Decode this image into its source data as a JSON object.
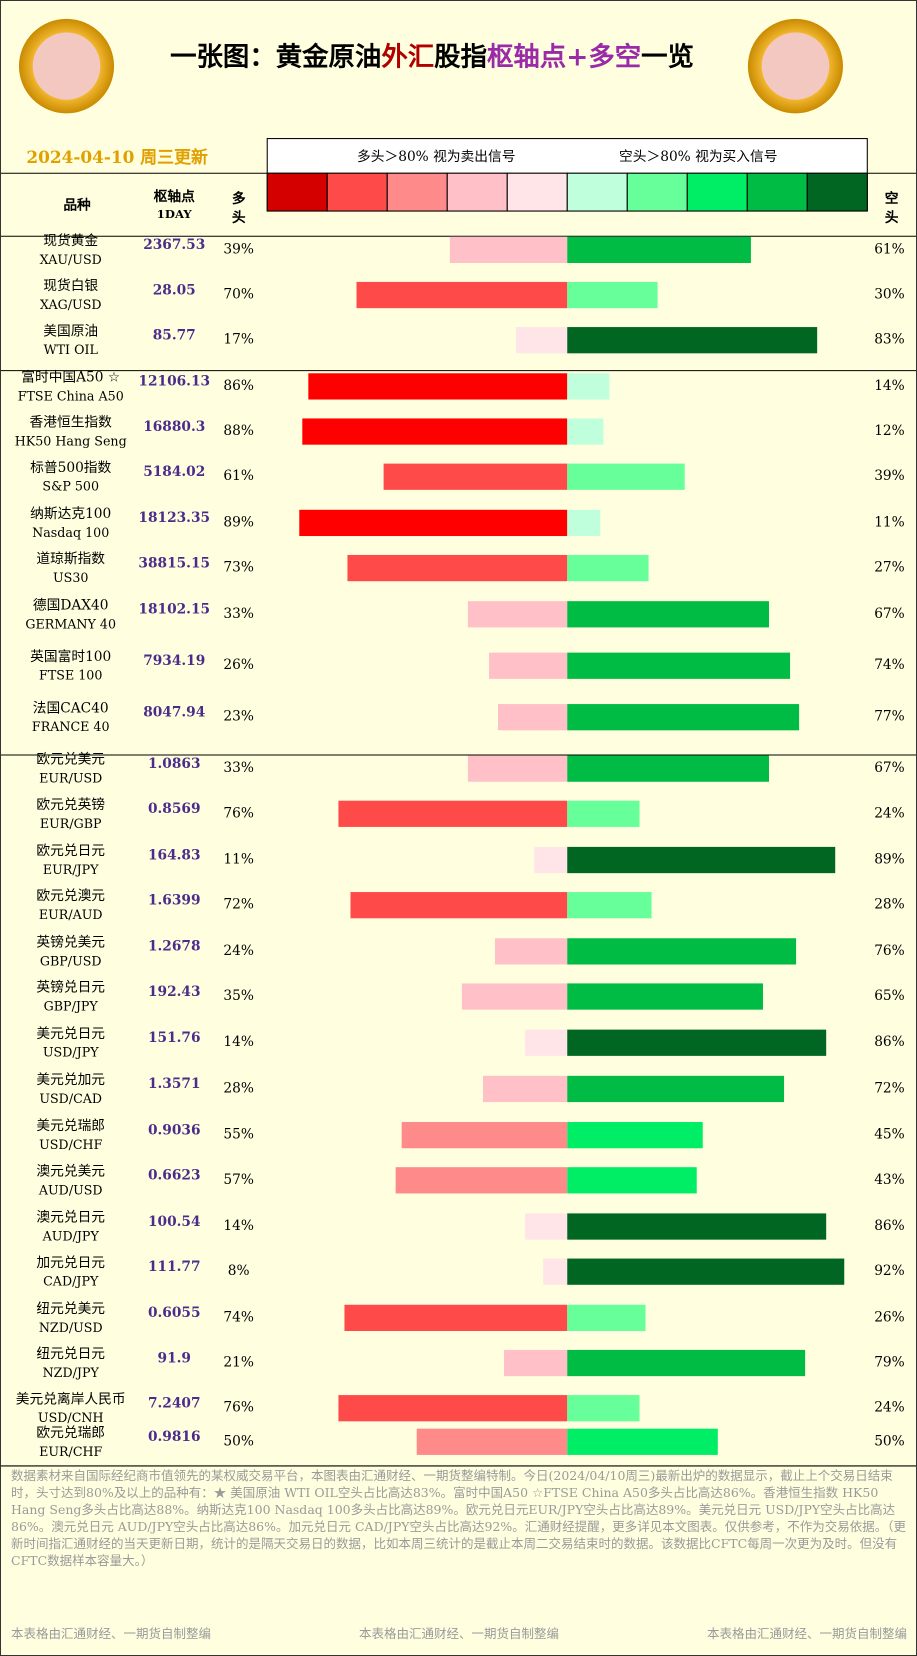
{
  "header": {
    "title_parts": [
      "一张图：黄金原油",
      "外汇",
      "股指",
      "枢轴点+多空",
      "一览"
    ],
    "date": "2024-04-10 周三更新",
    "legend_long": "多头＞80% 视为卖出信号",
    "legend_short": "空头＞80% 视为买入信号",
    "legend_colors": [
      "#d40000",
      "#ff4a4a",
      "#ff8a8a",
      "#ffc0c8",
      "#ffe4e8",
      "#c0ffdc",
      "#66ff99",
      "#00ee66",
      "#00bb44",
      "#006622"
    ],
    "col_name": "品种",
    "col_pivot": "枢轴点",
    "col_pivot_sub": "1DAY",
    "col_long": [
      "多",
      "头"
    ],
    "col_short": [
      "空",
      "头"
    ]
  },
  "groups": [
    {
      "rows": [
        {
          "name": "现货黄金",
          "code": "XAU/USD",
          "pivot": 2367.53,
          "values": [
            39,
            61
          ],
          "value_labels": [
            "39%",
            "61%"
          ],
          "colors": [
            "#ffc0c8",
            "#00bb44"
          ]
        },
        {
          "name": "现货白银",
          "code": "XAG/USD",
          "pivot": 28.05,
          "values": [
            70,
            30
          ],
          "value_labels": [
            "70%",
            "30%"
          ],
          "colors": [
            "#ff4a4a",
            "#66ff99"
          ]
        },
        {
          "name": "美国原油",
          "code": "WTI OIL",
          "pivot": 85.77,
          "values": [
            17,
            83
          ],
          "value_labels": [
            "17%",
            "83%"
          ],
          "colors": [
            "#ffe4e8",
            "#006622"
          ]
        }
      ]
    },
    {
      "rows": [
        {
          "name": "富时中国A50 ☆",
          "code": "FTSE China A50",
          "pivot": 12106.13,
          "values": [
            86,
            14
          ],
          "value_labels": [
            "86%",
            "14%"
          ],
          "colors": [
            "#ff0000",
            "#c0ffdc"
          ]
        },
        {
          "name": "香港恒生指数",
          "code": "HK50 Hang Seng",
          "pivot": 16880.3,
          "values": [
            88,
            12
          ],
          "value_labels": [
            "88%",
            "12%"
          ],
          "colors": [
            "#ff0000",
            "#c0ffdc"
          ]
        },
        {
          "name": "标普500指数",
          "code": "S&P 500",
          "pivot": 5184.02,
          "values": [
            61,
            39
          ],
          "value_labels": [
            "61%",
            "39%"
          ],
          "colors": [
            "#ff4a4a",
            "#66ff99"
          ]
        },
        {
          "name": "纳斯达克100",
          "code": "Nasdaq 100",
          "pivot": 18123.35,
          "values": [
            89,
            11
          ],
          "value_labels": [
            "89%",
            "11%"
          ],
          "colors": [
            "#ff0000",
            "#c0ffdc"
          ]
        },
        {
          "name": "道琼斯指数",
          "code": "US30",
          "pivot": 38815.15,
          "values": [
            73,
            27
          ],
          "value_labels": [
            "73%",
            "27%"
          ],
          "colors": [
            "#ff4a4a",
            "#66ff99"
          ]
        },
        {
          "name": "德国DAX40",
          "code": "GERMANY 40",
          "pivot": 18102.15,
          "values": [
            33,
            67
          ],
          "value_labels": [
            "33%",
            "67%"
          ],
          "colors": [
            "#ffc0c8",
            "#00bb44"
          ]
        },
        {
          "name": "英国富时100",
          "code": "FTSE 100",
          "pivot": 7934.19,
          "values": [
            26,
            74
          ],
          "value_labels": [
            "26%",
            "74%"
          ],
          "colors": [
            "#ffc0c8",
            "#00bb44"
          ]
        },
        {
          "name": "法国CAC40",
          "code": "FRANCE 40",
          "pivot": 8047.94,
          "values": [
            23,
            77
          ],
          "value_labels": [
            "23%",
            "77%"
          ],
          "colors": [
            "#ffc0c8",
            "#00bb44"
          ]
        }
      ]
    },
    {
      "rows": [
        {
          "name": "欧元兑美元",
          "code": "EUR/USD",
          "pivot": 1.0863,
          "values": [
            33,
            67
          ],
          "value_labels": [
            "33%",
            "67%"
          ],
          "colors": [
            "#ffc0c8",
            "#00bb44"
          ]
        },
        {
          "name": "欧元兑英镑",
          "code": "EUR/GBP",
          "pivot": 0.8569,
          "values": [
            76,
            24
          ],
          "value_labels": [
            "76%",
            "24%"
          ],
          "colors": [
            "#ff4a4a",
            "#66ff99"
          ]
        },
        {
          "name": "欧元兑日元",
          "code": "EUR/JPY",
          "pivot": 164.83,
          "values": [
            11,
            89
          ],
          "value_labels": [
            "11%",
            "89%"
          ],
          "colors": [
            "#ffe4e8",
            "#006622"
          ]
        },
        {
          "name": "欧元兑澳元",
          "code": "EUR/AUD",
          "pivot": 1.6399,
          "values": [
            72,
            28
          ],
          "value_labels": [
            "72%",
            "28%"
          ],
          "colors": [
            "#ff4a4a",
            "#66ff99"
          ]
        },
        {
          "name": "英镑兑美元",
          "code": "GBP/USD",
          "pivot": 1.2678,
          "values": [
            24,
            76
          ],
          "value_labels": [
            "24%",
            "76%"
          ],
          "colors": [
            "#ffc0c8",
            "#00bb44"
          ]
        },
        {
          "name": "英镑兑日元",
          "code": "GBP/JPY",
          "pivot": 192.43,
          "values": [
            35,
            65
          ],
          "value_labels": [
            "35%",
            "65%"
          ],
          "colors": [
            "#ffc0c8",
            "#00bb44"
          ]
        },
        {
          "name": "美元兑日元",
          "code": "USD/JPY",
          "pivot": 151.76,
          "values": [
            14,
            86
          ],
          "value_labels": [
            "14%",
            "86%"
          ],
          "colors": [
            "#ffe4e8",
            "#006622"
          ]
        },
        {
          "name": "美元兑加元",
          "code": "USD/CAD",
          "pivot": 1.3571,
          "values": [
            28,
            72
          ],
          "value_labels": [
            "28%",
            "72%"
          ],
          "colors": [
            "#ffc0c8",
            "#00bb44"
          ]
        },
        {
          "name": "美元兑瑞郎",
          "code": "USD/CHF",
          "pivot": 0.9036,
          "values": [
            55,
            45
          ],
          "value_labels": [
            "55%",
            "45%"
          ],
          "colors": [
            "#ff8a8a",
            "#00ee66"
          ]
        },
        {
          "name": "澳元兑美元",
          "code": "AUD/USD",
          "pivot": 0.6623,
          "values": [
            57,
            43
          ],
          "value_labels": [
            "57%",
            "43%"
          ],
          "colors": [
            "#ff8a8a",
            "#00ee66"
          ]
        },
        {
          "name": "澳元兑日元",
          "code": "AUD/JPY",
          "pivot": 100.54,
          "values": [
            14,
            86
          ],
          "value_labels": [
            "14%",
            "86%"
          ],
          "colors": [
            "#ffe4e8",
            "#006622"
          ]
        },
        {
          "name": "加元兑日元",
          "code": "CAD/JPY",
          "pivot": 111.77,
          "values": [
            8,
            92
          ],
          "value_labels": [
            "8%",
            "92%"
          ],
          "colors": [
            "#ffe4e8",
            "#006622"
          ]
        },
        {
          "name": "纽元兑美元",
          "code": "NZD/USD",
          "pivot": 0.6055,
          "values": [
            74,
            26
          ],
          "value_labels": [
            "74%",
            "26%"
          ],
          "colors": [
            "#ff4a4a",
            "#66ff99"
          ]
        },
        {
          "name": "纽元兑日元",
          "code": "NZD/JPY",
          "pivot": 91.9,
          "values": [
            21,
            79
          ],
          "value_labels": [
            "21%",
            "79%"
          ],
          "colors": [
            "#ffc0c8",
            "#00bb44"
          ]
        },
        {
          "name": "美元兑离岸人民币",
          "code": "USD/CNH",
          "pivot": 7.2407,
          "values": [
            76,
            24
          ],
          "value_labels": [
            "76%",
            "24%"
          ],
          "colors": [
            "#ff4a4a",
            "#66ff99"
          ]
        },
        {
          "name": "欧元兑瑞郎",
          "code": "EUR/CHF",
          "pivot": 0.9816,
          "values": [
            50,
            50
          ],
          "value_labels": [
            "50%",
            "50%"
          ],
          "colors": [
            "#ff8a8a",
            "#00ee66"
          ]
        }
      ]
    }
  ],
  "footer": {
    "text": "数据素材来自国际经纪商市值领先的某权威交易平台，本图表由汇通财经、一期货整编特制。今日(2024/04/10周三)最新出炉的数据显示，截止上个交易日结束时，头寸达到80%及以上的品种有：★ 美国原油 WTI OIL空头占比高达83%。富时中国A50 ☆FTSE China A50多头占比高达86%。香港恒生指数 HK50 Hang Seng多头占比高达88%。纳斯达克100 Nasdaq 100多头占比高达89%。欧元兑日元EUR/JPY空头占比高达89%。美元兑日元 USD/JPY空头占比高达86%。澳元兑日元 AUD/JPY空头占比高达86%。加元兑日元 CAD/JPY空头占比高达92%。汇通财经提醒，更多详见本文图表。仅供参考，不作为交易依据。（更新时间指汇通财经的当天更新日期，统计的是隔天交易日的数据，比如本周三统计的是截止本周二交易结束时的数据。该数据比CFTC每周一次更为及时。但没有CFTC数据样本容量大。）",
    "credits": [
      "本表格由汇通财经、一期货自制整编",
      "本表格由汇通财经、一期货自制整编",
      "本表格由汇通财经、一期货自制整编"
    ]
  }
}
